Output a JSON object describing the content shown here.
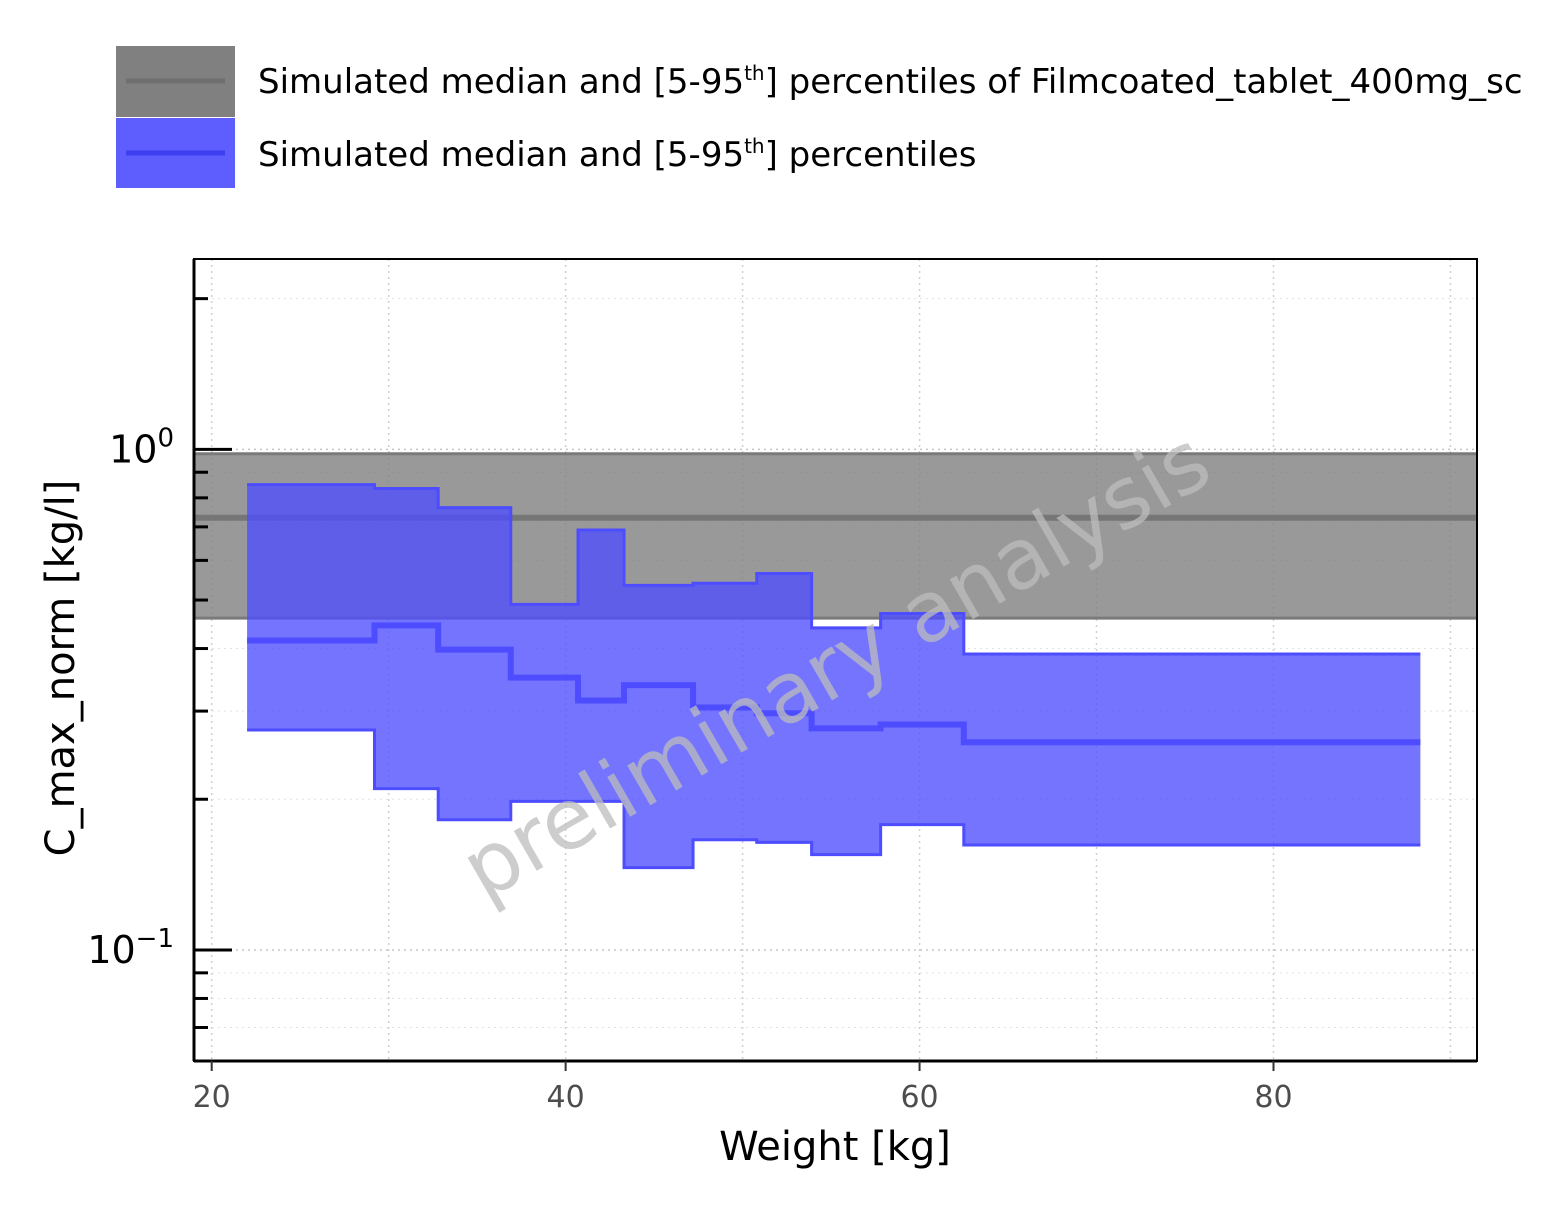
{
  "chart_data": {
    "type": "area",
    "xlabel": "Weight [kg]",
    "ylabel": "C_max_norm [kg/l]",
    "watermark": "preliminary analysis",
    "xlim": [
      19,
      91.5
    ],
    "ylim": [
      0.06,
      2.4
    ],
    "yscale": "log",
    "x_ticks": [
      20,
      40,
      60,
      80
    ],
    "x_minor": [
      30,
      50,
      70,
      90
    ],
    "y_ticks": [
      {
        "value": 1.0,
        "base": "10",
        "exp": "0"
      },
      {
        "value": 0.1,
        "base": "10",
        "exp": "−1"
      }
    ],
    "grid": true,
    "legend_position": "top-left",
    "legend": [
      {
        "pre": "Simulated median and [5-95",
        "sup": "th",
        "post": "] percentiles of Filmcoated_tablet_400mg_sc",
        "color": "#808080"
      },
      {
        "pre": "Simulated median and [5-95",
        "sup": "th",
        "post": "] percentiles",
        "color": "#4d4dff"
      }
    ],
    "reference_band": {
      "name": "Filmcoated_tablet_400mg_sc",
      "median": 0.73,
      "p5": 0.46,
      "p95": 0.98,
      "fill": "#808080",
      "line": "#7a7a7a"
    },
    "series": [
      {
        "name": "Simulated median and [5-95th] percentiles",
        "fill": "#4d4dff",
        "line": "#4d4dff",
        "bins": [
          {
            "x0": 22.0,
            "x1": 29.2,
            "p5": 0.275,
            "median": 0.415,
            "p95": 0.85
          },
          {
            "x0": 29.2,
            "x1": 32.8,
            "p5": 0.21,
            "median": 0.445,
            "p95": 0.835
          },
          {
            "x0": 32.8,
            "x1": 36.9,
            "p5": 0.182,
            "median": 0.398,
            "p95": 0.765
          },
          {
            "x0": 36.9,
            "x1": 40.7,
            "p5": 0.198,
            "median": 0.35,
            "p95": 0.49
          },
          {
            "x0": 40.7,
            "x1": 43.3,
            "p5": 0.198,
            "median": 0.315,
            "p95": 0.69
          },
          {
            "x0": 43.3,
            "x1": 47.2,
            "p5": 0.146,
            "median": 0.338,
            "p95": 0.535
          },
          {
            "x0": 47.2,
            "x1": 50.8,
            "p5": 0.166,
            "median": 0.305,
            "p95": 0.54
          },
          {
            "x0": 50.8,
            "x1": 53.9,
            "p5": 0.164,
            "median": 0.297,
            "p95": 0.565
          },
          {
            "x0": 53.9,
            "x1": 57.8,
            "p5": 0.155,
            "median": 0.277,
            "p95": 0.44
          },
          {
            "x0": 57.8,
            "x1": 62.5,
            "p5": 0.178,
            "median": 0.282,
            "p95": 0.47
          },
          {
            "x0": 62.5,
            "x1": 88.3,
            "p5": 0.162,
            "median": 0.26,
            "p95": 0.39
          }
        ]
      }
    ]
  }
}
